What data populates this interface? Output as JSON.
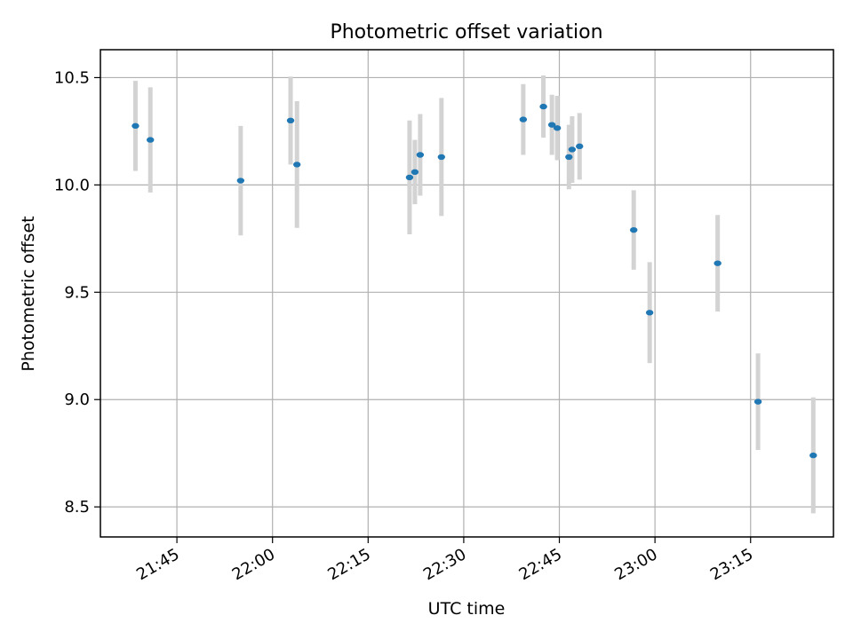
{
  "chart_data": {
    "type": "scatter",
    "title": "Photometric offset variation",
    "xlabel": "UTC time",
    "ylabel": "Photometric offset",
    "x_unit": "HH:MM UTC",
    "xlim": [
      "21:33",
      "23:28"
    ],
    "ylim": [
      8.36,
      10.63
    ],
    "x_ticks": [
      "21:45",
      "22:00",
      "22:15",
      "22:30",
      "22:45",
      "23:00",
      "23:15"
    ],
    "y_ticks": [
      "8.5",
      "9.0",
      "9.5",
      "10.0",
      "10.5"
    ],
    "y_tick_values": [
      8.5,
      9.0,
      9.5,
      10.0,
      10.5
    ],
    "grid": true,
    "colors": {
      "point": "#1f77b4",
      "errorbar": "#d3d3d3",
      "grid": "#b0b0b0"
    },
    "points": [
      {
        "x": "21:38:30",
        "y": 10.275,
        "err": 0.21
      },
      {
        "x": "21:40:50",
        "y": 10.21,
        "err": 0.245
      },
      {
        "x": "21:55:00",
        "y": 10.02,
        "err": 0.255
      },
      {
        "x": "22:02:50",
        "y": 10.3,
        "err": 0.205
      },
      {
        "x": "22:03:50",
        "y": 10.095,
        "err": 0.295
      },
      {
        "x": "22:21:30",
        "y": 10.035,
        "err": 0.265
      },
      {
        "x": "22:22:20",
        "y": 10.06,
        "err": 0.15
      },
      {
        "x": "22:23:10",
        "y": 10.14,
        "err": 0.19
      },
      {
        "x": "22:26:30",
        "y": 10.13,
        "err": 0.275
      },
      {
        "x": "22:39:20",
        "y": 10.305,
        "err": 0.165
      },
      {
        "x": "22:42:30",
        "y": 10.365,
        "err": 0.145
      },
      {
        "x": "22:43:50",
        "y": 10.28,
        "err": 0.14
      },
      {
        "x": "22:44:40",
        "y": 10.265,
        "err": 0.15
      },
      {
        "x": "22:46:30",
        "y": 10.13,
        "err": 0.15
      },
      {
        "x": "22:47:00",
        "y": 10.165,
        "err": 0.155
      },
      {
        "x": "22:48:10",
        "y": 10.18,
        "err": 0.155
      },
      {
        "x": "22:56:40",
        "y": 9.79,
        "err": 0.185
      },
      {
        "x": "22:59:10",
        "y": 9.405,
        "err": 0.235
      },
      {
        "x": "23:09:50",
        "y": 9.635,
        "err": 0.225
      },
      {
        "x": "23:16:10",
        "y": 8.99,
        "err": 0.225
      },
      {
        "x": "23:24:50",
        "y": 8.74,
        "err": 0.27
      }
    ]
  }
}
